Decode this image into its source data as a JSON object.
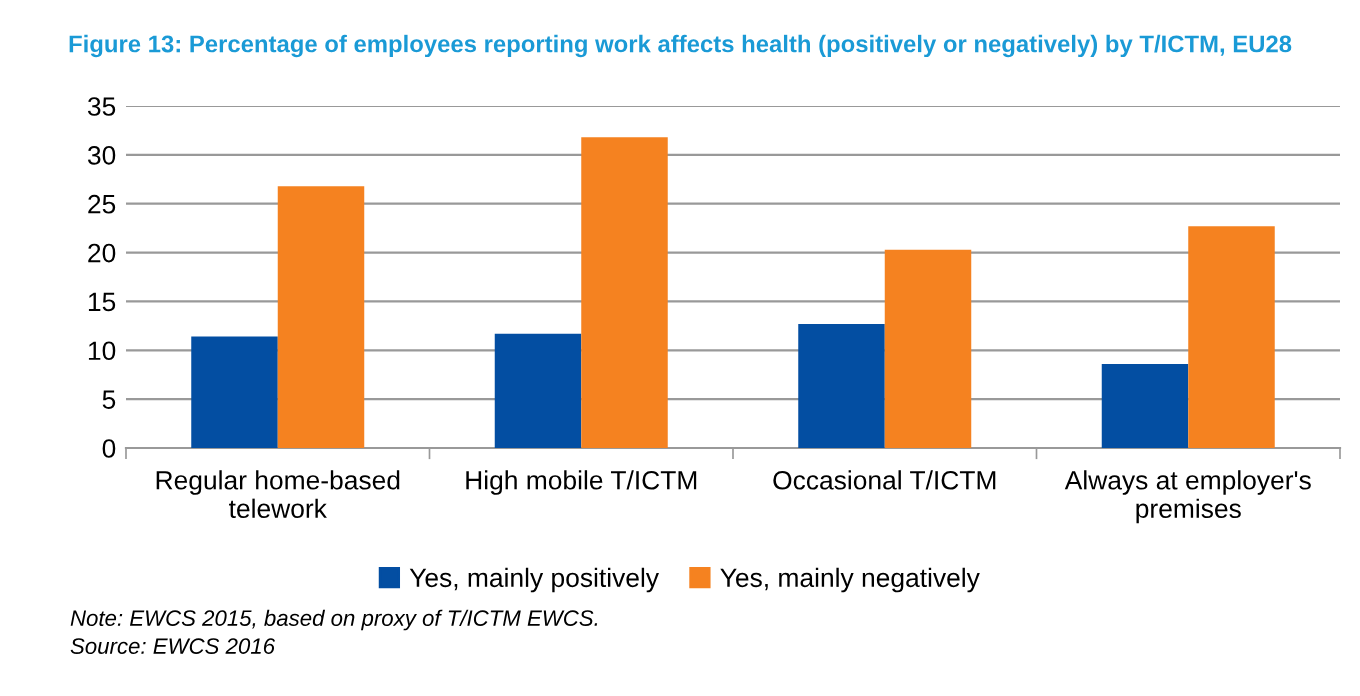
{
  "chart_data": {
    "type": "bar",
    "title": "Figure 13: Percentage of employees reporting work affects health (positively or negatively) by T/ICTM, EU28",
    "categories": [
      "Regular home-based\ntelework",
      "High mobile T/ICTM",
      "Occasional T/ICTM",
      "Always at employer's\npremises"
    ],
    "series": [
      {
        "name": "Yes, mainly positively",
        "color": "#034ea2",
        "values": [
          11.4,
          11.7,
          12.7,
          8.6
        ]
      },
      {
        "name": "Yes, mainly negatively",
        "color": "#f58220",
        "values": [
          26.8,
          31.8,
          20.3,
          22.7
        ]
      }
    ],
    "ylim": [
      0,
      35
    ],
    "yticks": [
      0,
      5,
      10,
      15,
      20,
      25,
      30,
      35
    ],
    "grid": "y",
    "legend": "bottom",
    "annotations": [
      "Note: EWCS 2015, based on proxy of T/ICTM EWCS.",
      "Source: EWCS 2016"
    ]
  }
}
